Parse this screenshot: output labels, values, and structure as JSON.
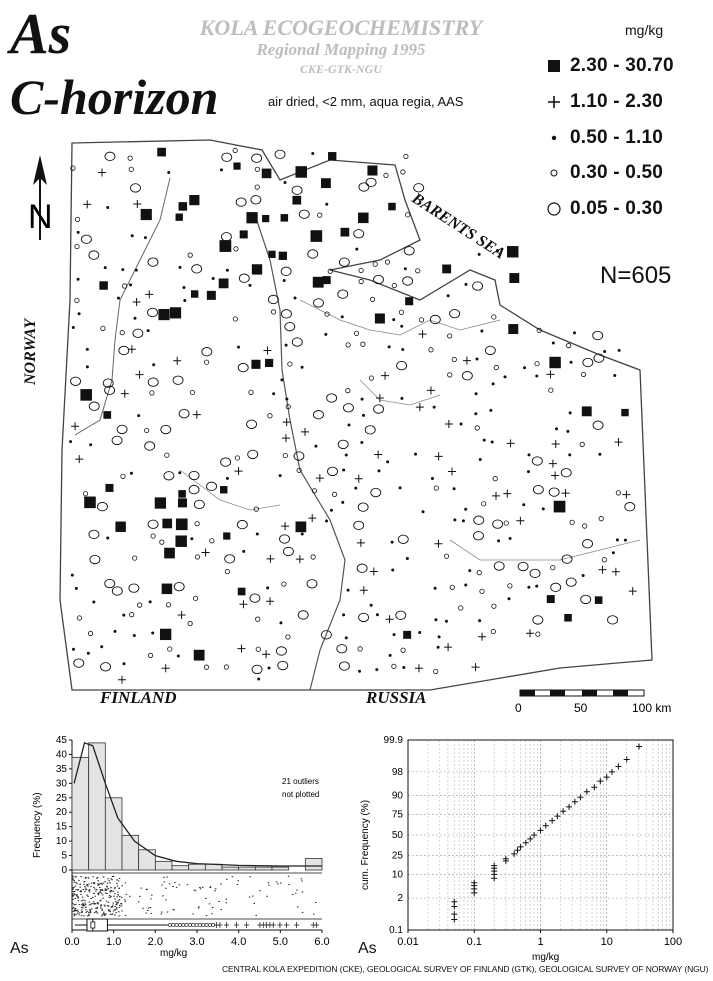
{
  "title": {
    "element": "As",
    "horizon": "C-horizon",
    "method": "air dried, <2 mm, aqua regia, AAS"
  },
  "project": {
    "line1": "KOLA ECOGEOCHEMISTRY",
    "line2": "Regional Mapping 1995",
    "line3": "CKE-GTK-NGU"
  },
  "legend": {
    "unit": "mg/kg",
    "classes": [
      {
        "range": "2.30 - 30.70",
        "symbol": "filled-square"
      },
      {
        "range": "1.10 - 2.30",
        "symbol": "plus"
      },
      {
        "range": "0.50 - 1.10",
        "symbol": "dot"
      },
      {
        "range": "0.30 - 0.50",
        "symbol": "small-circle"
      },
      {
        "range": "0.05 - 0.30",
        "symbol": "large-circle"
      }
    ]
  },
  "map": {
    "sample_count": "N=605",
    "labels": {
      "sea": "BARENTS SEA",
      "norway": "NORWAY",
      "finland": "FINLAND",
      "russia": "RUSSIA"
    },
    "scale_bar": {
      "ticks": [
        "0",
        "50",
        "100 km"
      ]
    }
  },
  "north_arrow": {
    "label": "N",
    "icon": "north-arrow-icon"
  },
  "histogram": {
    "element_label": "As",
    "ylabel": "Frequency (%)",
    "xlabel": "mg/kg",
    "yticks": [
      "0",
      "5",
      "10",
      "15",
      "20",
      "25",
      "30",
      "35",
      "40",
      "45"
    ],
    "xticks": [
      "0.0",
      "1.0",
      "2.0",
      "3.0",
      "4.0",
      "5.0",
      "6.0"
    ],
    "note_line1": "21 outliers",
    "note_line2": "not plotted"
  },
  "cumplot": {
    "element_label": "As",
    "ylabel": "cum. Frequency (%)",
    "xlabel": "mg/kg",
    "yticks": [
      "0.1",
      "2",
      "10",
      "25",
      "50",
      "75",
      "90",
      "98",
      "99.9"
    ],
    "xticks": [
      "0.01",
      "0.1",
      "1",
      "10",
      "100"
    ]
  },
  "footer": "CENTRAL KOLA EXPEDITION (CKE), GEOLOGICAL SURVEY OF FINLAND (GTK), GEOLOGICAL SURVEY OF NORWAY (NGU)",
  "chart_data": [
    {
      "type": "bar",
      "title": "",
      "xlabel": "mg/kg",
      "ylabel": "Frequency (%)",
      "xlim": [
        0,
        6
      ],
      "ylim": [
        0,
        45
      ],
      "bin_width": 0.4,
      "bins": [
        {
          "x0": 0.0,
          "value": 39
        },
        {
          "x0": 0.4,
          "value": 44
        },
        {
          "x0": 0.8,
          "value": 25
        },
        {
          "x0": 1.2,
          "value": 12
        },
        {
          "x0": 1.6,
          "value": 7
        },
        {
          "x0": 2.0,
          "value": 3
        },
        {
          "x0": 2.4,
          "value": 1.5
        },
        {
          "x0": 2.8,
          "value": 2
        },
        {
          "x0": 3.2,
          "value": 2
        },
        {
          "x0": 3.6,
          "value": 1
        },
        {
          "x0": 4.0,
          "value": 1
        },
        {
          "x0": 4.4,
          "value": 1
        },
        {
          "x0": 4.8,
          "value": 1
        },
        {
          "x0": 5.6,
          "value": 4
        }
      ],
      "density_curve": [
        [
          0.05,
          30
        ],
        [
          0.3,
          44
        ],
        [
          0.5,
          43
        ],
        [
          0.8,
          30
        ],
        [
          1.1,
          18
        ],
        [
          1.5,
          10
        ],
        [
          2.0,
          5
        ],
        [
          2.5,
          3
        ],
        [
          3.0,
          2.2
        ],
        [
          4.0,
          1.6
        ],
        [
          5.0,
          1.4
        ],
        [
          6.0,
          1.4
        ]
      ],
      "boxplot": {
        "q1": 0.36,
        "median": 0.5,
        "q3": 0.85,
        "whisker_low": 0.07,
        "whisker_high": 2.3
      }
    },
    {
      "type": "scatter",
      "title": "",
      "xlabel": "mg/kg",
      "ylabel": "cum. Frequency (%)",
      "x_scale": "log",
      "y_scale": "probability",
      "xlim": [
        0.01,
        100
      ],
      "ylim": [
        0.1,
        99.9
      ],
      "points": [
        [
          0.05,
          0.3
        ],
        [
          0.05,
          0.5
        ],
        [
          0.05,
          1.0
        ],
        [
          0.05,
          1.5
        ],
        [
          0.1,
          3
        ],
        [
          0.1,
          4
        ],
        [
          0.1,
          5
        ],
        [
          0.1,
          6
        ],
        [
          0.2,
          8
        ],
        [
          0.2,
          10
        ],
        [
          0.2,
          12
        ],
        [
          0.2,
          14
        ],
        [
          0.2,
          16
        ],
        [
          0.3,
          20
        ],
        [
          0.3,
          22
        ],
        [
          0.4,
          27
        ],
        [
          0.45,
          31
        ],
        [
          0.5,
          35
        ],
        [
          0.6,
          40
        ],
        [
          0.7,
          45
        ],
        [
          0.8,
          50
        ],
        [
          1.0,
          56
        ],
        [
          1.2,
          62
        ],
        [
          1.5,
          68
        ],
        [
          1.8,
          73
        ],
        [
          2.2,
          78
        ],
        [
          2.7,
          82
        ],
        [
          3.3,
          86
        ],
        [
          4.0,
          89
        ],
        [
          5.0,
          92
        ],
        [
          6.5,
          94
        ],
        [
          8.0,
          96
        ],
        [
          10.0,
          97
        ],
        [
          12.0,
          98
        ],
        [
          15.0,
          98.7
        ],
        [
          20.0,
          99.3
        ],
        [
          30.7,
          99.8
        ]
      ]
    }
  ]
}
